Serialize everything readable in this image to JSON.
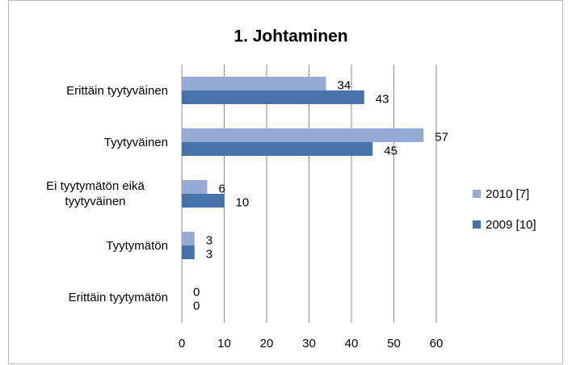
{
  "chart_data": {
    "type": "bar",
    "orientation": "horizontal",
    "title": "1. Johtaminen",
    "categories": [
      "Erittäin tyytyväinen",
      "Tyytyväinen",
      "Ei tyytymätön eikä tyytyväinen",
      "Tyytymätön",
      "Erittäin tyytymätön"
    ],
    "series": [
      {
        "name": "2010 [7]",
        "color": "#95abd6",
        "values": [
          34,
          57,
          6,
          3,
          0
        ]
      },
      {
        "name": "2009 [10]",
        "color": "#4673aa",
        "values": [
          43,
          45,
          10,
          3,
          0
        ]
      }
    ],
    "xlim": [
      0,
      60
    ],
    "xticks": [
      0,
      10,
      20,
      30,
      40,
      50,
      60
    ],
    "grid": true,
    "legend": "right"
  }
}
